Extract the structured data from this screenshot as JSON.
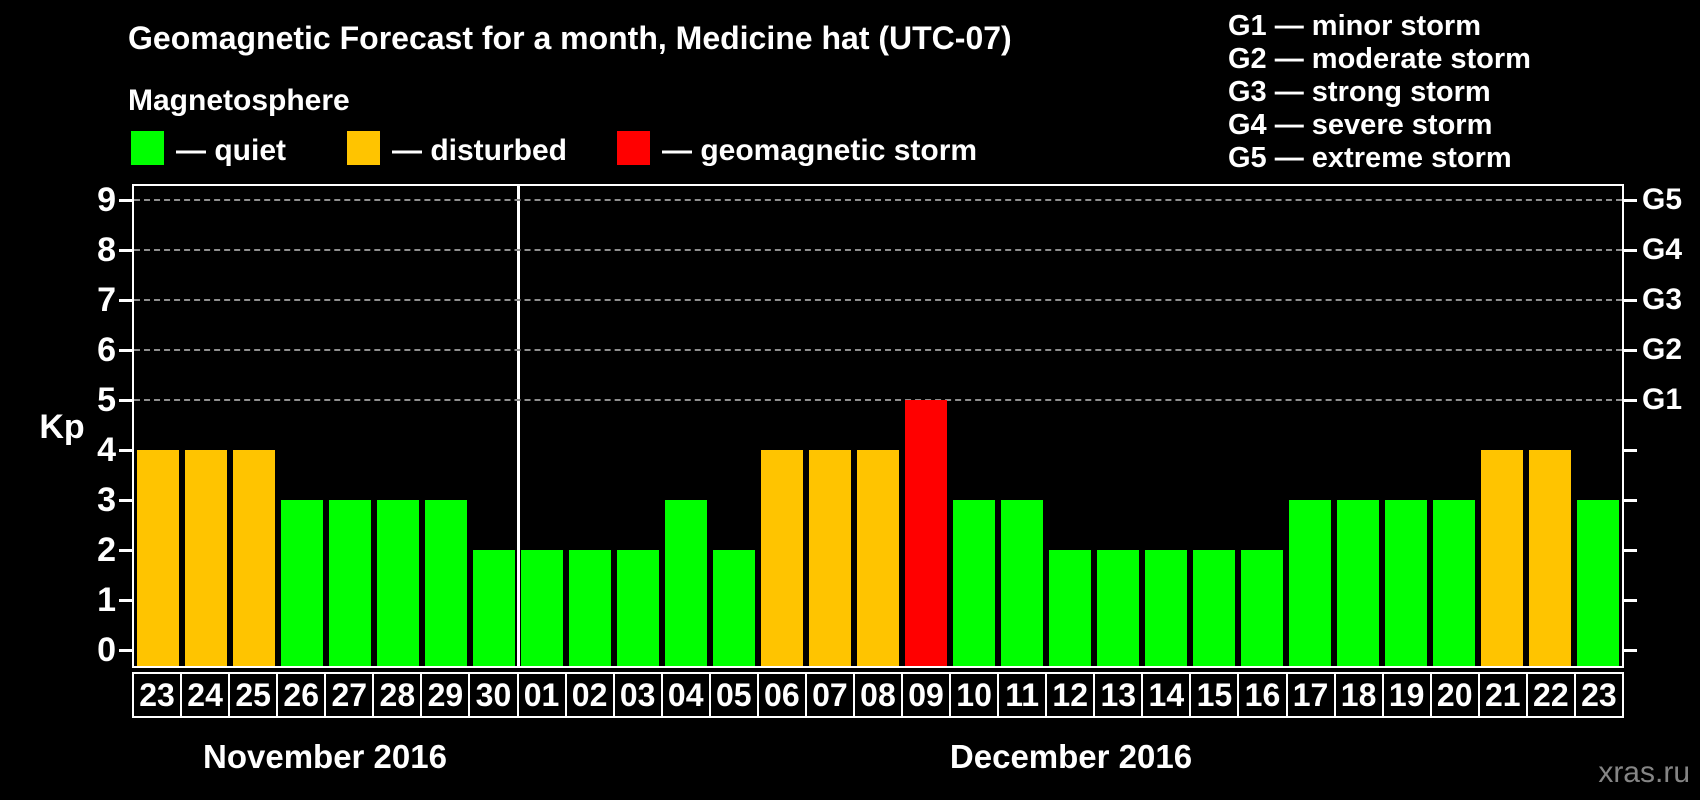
{
  "title": "Geomagnetic Forecast for a month, Medicine hat (UTC-07)",
  "subtitle": "Magnetosphere",
  "legend": {
    "items": [
      {
        "status": "quiet",
        "label": "— quiet",
        "color": "#00FF00"
      },
      {
        "status": "disturbed",
        "label": "— disturbed",
        "color": "#FFC400"
      },
      {
        "status": "storm",
        "label": "— geomagnetic storm",
        "color": "#FF0000"
      }
    ]
  },
  "g_legend": [
    "G1 — minor storm",
    "G2 — moderate storm",
    "G3 — strong storm",
    "G4 — severe storm",
    "G5 — extreme storm"
  ],
  "watermark": "xras.ru",
  "chart_data": {
    "type": "bar",
    "title": "Geomagnetic Forecast for a month, Medicine hat (UTC-07)",
    "ylabel": "Kp",
    "ylim": [
      0,
      9
    ],
    "yticks": [
      0,
      1,
      2,
      3,
      4,
      5,
      6,
      7,
      8,
      9
    ],
    "gridlines_at": [
      5,
      6,
      7,
      8,
      9
    ],
    "grid": "dashed, only at Kp 5-9",
    "right_axis_labels": [
      {
        "kp": 5,
        "label": "G1"
      },
      {
        "kp": 6,
        "label": "G2"
      },
      {
        "kp": 7,
        "label": "G3"
      },
      {
        "kp": 8,
        "label": "G4"
      },
      {
        "kp": 9,
        "label": "G5"
      }
    ],
    "colors": {
      "quiet": "#00FF00",
      "disturbed": "#FFC400",
      "storm": "#FF0000"
    },
    "months": [
      {
        "label": "November 2016",
        "days": 8
      },
      {
        "label": "December 2016",
        "days": 23
      }
    ],
    "days": [
      {
        "day": "23",
        "kp": 4,
        "status": "disturbed"
      },
      {
        "day": "24",
        "kp": 4,
        "status": "disturbed"
      },
      {
        "day": "25",
        "kp": 4,
        "status": "disturbed"
      },
      {
        "day": "26",
        "kp": 3,
        "status": "quiet"
      },
      {
        "day": "27",
        "kp": 3,
        "status": "quiet"
      },
      {
        "day": "28",
        "kp": 3,
        "status": "quiet"
      },
      {
        "day": "29",
        "kp": 3,
        "status": "quiet"
      },
      {
        "day": "30",
        "kp": 2,
        "status": "quiet"
      },
      {
        "day": "01",
        "kp": 2,
        "status": "quiet"
      },
      {
        "day": "02",
        "kp": 2,
        "status": "quiet"
      },
      {
        "day": "03",
        "kp": 2,
        "status": "quiet"
      },
      {
        "day": "04",
        "kp": 3,
        "status": "quiet"
      },
      {
        "day": "05",
        "kp": 2,
        "status": "quiet"
      },
      {
        "day": "06",
        "kp": 4,
        "status": "disturbed"
      },
      {
        "day": "07",
        "kp": 4,
        "status": "disturbed"
      },
      {
        "day": "08",
        "kp": 4,
        "status": "disturbed"
      },
      {
        "day": "09",
        "kp": 5,
        "status": "storm"
      },
      {
        "day": "10",
        "kp": 3,
        "status": "quiet"
      },
      {
        "day": "11",
        "kp": 3,
        "status": "quiet"
      },
      {
        "day": "12",
        "kp": 2,
        "status": "quiet"
      },
      {
        "day": "13",
        "kp": 2,
        "status": "quiet"
      },
      {
        "day": "14",
        "kp": 2,
        "status": "quiet"
      },
      {
        "day": "15",
        "kp": 2,
        "status": "quiet"
      },
      {
        "day": "16",
        "kp": 2,
        "status": "quiet"
      },
      {
        "day": "17",
        "kp": 3,
        "status": "quiet"
      },
      {
        "day": "18",
        "kp": 3,
        "status": "quiet"
      },
      {
        "day": "19",
        "kp": 3,
        "status": "quiet"
      },
      {
        "day": "20",
        "kp": 3,
        "status": "quiet"
      },
      {
        "day": "21",
        "kp": 4,
        "status": "disturbed"
      },
      {
        "day": "22",
        "kp": 4,
        "status": "disturbed"
      },
      {
        "day": "23",
        "kp": 3,
        "status": "quiet"
      }
    ]
  }
}
